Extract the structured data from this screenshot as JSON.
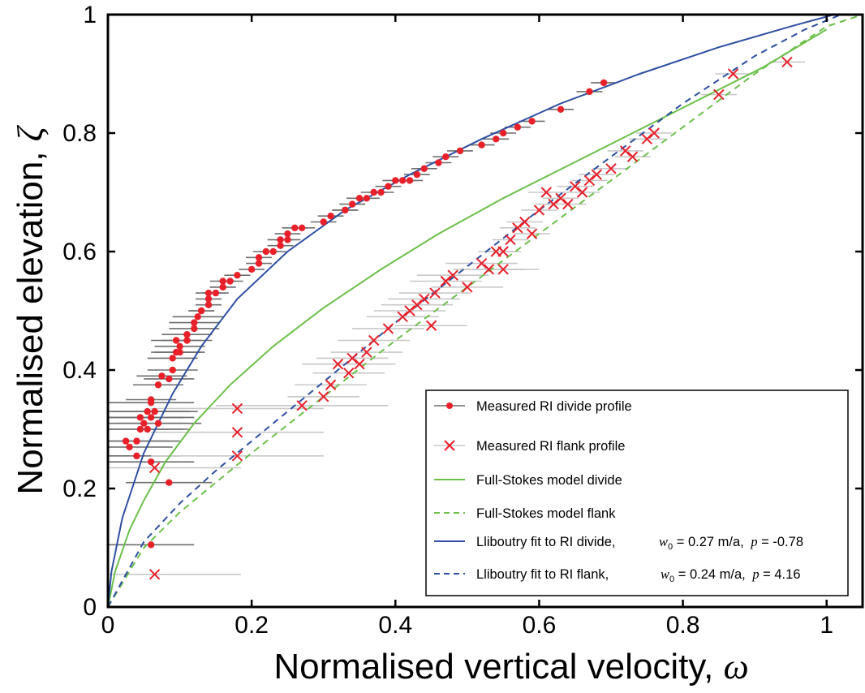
{
  "chart_data": {
    "type": "scatter",
    "xlabel": "Normalised vertical velocity,",
    "xlabel_symbol": "ω",
    "ylabel": "Normalised elevation,",
    "ylabel_symbol": "ζ",
    "xlim": [
      0,
      1.05
    ],
    "ylim": [
      0,
      1
    ],
    "x_ticks": [
      0,
      0.2,
      0.4,
      0.6,
      0.8,
      1
    ],
    "y_ticks": [
      0,
      0.2,
      0.4,
      0.6,
      0.8,
      1
    ],
    "x_tick_labels": [
      "0",
      "0.2",
      "0.4",
      "0.6",
      "0.8",
      "1"
    ],
    "y_tick_labels": [
      "0",
      "0.2",
      "0.4",
      "0.6",
      "0.8",
      "1"
    ],
    "grid": false,
    "legend_position": "bottom-right",
    "colors": {
      "measured": "#e8202a",
      "divide_err": "#6e6e6e",
      "flank_err": "#c8c8c8",
      "fullstokes": "#6cc04a",
      "lliboutry": "#2e4fa2"
    },
    "series": [
      {
        "name": "Measured RI divide profile",
        "marker": "dot",
        "x": [
          0.025,
          0.03,
          0.04,
          0.04,
          0.045,
          0.055,
          0.045,
          0.05,
          0.055,
          0.06,
          0.06,
          0.065,
          0.06,
          0.07,
          0.07,
          0.075,
          0.085,
          0.09,
          0.09,
          0.095,
          0.1,
          0.1,
          0.095,
          0.11,
          0.11,
          0.12,
          0.12,
          0.125,
          0.13,
          0.13,
          0.14,
          0.14,
          0.14,
          0.15,
          0.16,
          0.16,
          0.16,
          0.17,
          0.18,
          0.2,
          0.21,
          0.21,
          0.22,
          0.23,
          0.24,
          0.24,
          0.25,
          0.25,
          0.26,
          0.27,
          0.3,
          0.31,
          0.33,
          0.33,
          0.34,
          0.35,
          0.36,
          0.37,
          0.38,
          0.39,
          0.4,
          0.41,
          0.42,
          0.43,
          0.44,
          0.46,
          0.47,
          0.49,
          0.52,
          0.54,
          0.55,
          0.57,
          0.59,
          0.63,
          0.67,
          0.69,
          0.06,
          0.06,
          0.085
        ],
        "y": [
          0.28,
          0.27,
          0.255,
          0.28,
          0.3,
          0.3,
          0.32,
          0.31,
          0.33,
          0.32,
          0.345,
          0.33,
          0.35,
          0.31,
          0.375,
          0.39,
          0.385,
          0.4,
          0.42,
          0.43,
          0.43,
          0.44,
          0.45,
          0.45,
          0.46,
          0.47,
          0.48,
          0.49,
          0.5,
          0.5,
          0.51,
          0.52,
          0.53,
          0.53,
          0.54,
          0.54,
          0.55,
          0.55,
          0.56,
          0.57,
          0.58,
          0.59,
          0.6,
          0.6,
          0.61,
          0.62,
          0.62,
          0.63,
          0.64,
          0.64,
          0.65,
          0.66,
          0.67,
          0.67,
          0.68,
          0.69,
          0.69,
          0.7,
          0.7,
          0.71,
          0.72,
          0.72,
          0.72,
          0.73,
          0.74,
          0.75,
          0.76,
          0.77,
          0.78,
          0.79,
          0.8,
          0.81,
          0.82,
          0.84,
          0.87,
          0.885,
          0.105,
          0.245,
          0.21
        ]
      },
      {
        "name": "Measured RI flank profile",
        "marker": "x",
        "x": [
          0.065,
          0.18,
          0.18,
          0.18,
          0.065,
          0.27,
          0.3,
          0.31,
          0.32,
          0.335,
          0.34,
          0.35,
          0.36,
          0.37,
          0.39,
          0.41,
          0.42,
          0.43,
          0.44,
          0.45,
          0.455,
          0.47,
          0.48,
          0.5,
          0.52,
          0.53,
          0.54,
          0.55,
          0.55,
          0.56,
          0.57,
          0.58,
          0.59,
          0.6,
          0.61,
          0.62,
          0.63,
          0.64,
          0.65,
          0.66,
          0.67,
          0.68,
          0.7,
          0.72,
          0.73,
          0.75,
          0.76,
          0.85,
          0.87,
          0.945
        ],
        "y": [
          0.055,
          0.255,
          0.295,
          0.335,
          0.235,
          0.34,
          0.355,
          0.375,
          0.41,
          0.395,
          0.42,
          0.41,
          0.43,
          0.45,
          0.47,
          0.49,
          0.5,
          0.51,
          0.52,
          0.475,
          0.53,
          0.55,
          0.56,
          0.54,
          0.58,
          0.57,
          0.6,
          0.57,
          0.6,
          0.62,
          0.64,
          0.65,
          0.63,
          0.67,
          0.7,
          0.68,
          0.69,
          0.68,
          0.71,
          0.7,
          0.72,
          0.73,
          0.74,
          0.77,
          0.76,
          0.79,
          0.8,
          0.865,
          0.9,
          0.92
        ]
      },
      {
        "name": "Full-Stokes model divide",
        "type": "line",
        "style": "solid",
        "x": [
          0,
          0.01,
          0.03,
          0.05,
          0.08,
          0.12,
          0.17,
          0.23,
          0.3,
          0.38,
          0.46,
          0.55,
          0.64,
          0.73,
          0.82,
          0.91,
          1.0
        ],
        "y": [
          0,
          0.06,
          0.13,
          0.18,
          0.245,
          0.31,
          0.375,
          0.44,
          0.505,
          0.57,
          0.63,
          0.69,
          0.745,
          0.8,
          0.855,
          0.91,
          0.975
        ]
      },
      {
        "name": "Full-Stokes model flank",
        "type": "line",
        "style": "dashed",
        "x": [
          0,
          0.05,
          0.1,
          0.15,
          0.2,
          0.3,
          0.4,
          0.5,
          0.6,
          0.7,
          0.8,
          0.9,
          1.0,
          1.05
        ],
        "y": [
          0,
          0.1,
          0.16,
          0.21,
          0.26,
          0.355,
          0.45,
          0.54,
          0.63,
          0.72,
          0.81,
          0.9,
          0.98,
          1.0
        ]
      },
      {
        "name": "Lliboutry fit to RI divide,",
        "type": "line",
        "style": "solid",
        "x": [
          0,
          0.005,
          0.02,
          0.05,
          0.09,
          0.13,
          0.18,
          0.25,
          0.33,
          0.42,
          0.52,
          0.63,
          0.74,
          0.85,
          0.95,
          1.01
        ],
        "y": [
          0,
          0.06,
          0.15,
          0.26,
          0.36,
          0.44,
          0.52,
          0.6,
          0.67,
          0.73,
          0.79,
          0.85,
          0.9,
          0.945,
          0.98,
          1.0
        ]
      },
      {
        "name": "Lliboutry fit to RI flank,",
        "type": "line",
        "style": "dashed",
        "x": [
          0,
          0.05,
          0.1,
          0.15,
          0.2,
          0.3,
          0.4,
          0.5,
          0.6,
          0.7,
          0.8,
          0.9,
          0.97,
          1.02
        ],
        "y": [
          0,
          0.11,
          0.175,
          0.23,
          0.28,
          0.38,
          0.48,
          0.575,
          0.67,
          0.76,
          0.85,
          0.93,
          0.975,
          1.0
        ]
      }
    ],
    "legend": [
      {
        "label": "Measured RI divide profile",
        "w0_text": "",
        "p_text": ""
      },
      {
        "label": "Measured RI flank profile",
        "w0_text": "",
        "p_text": ""
      },
      {
        "label": "Full-Stokes model divide",
        "w0_text": "",
        "p_text": ""
      },
      {
        "label": "Full-Stokes model flank",
        "w0_text": "",
        "p_text": ""
      },
      {
        "label": "Lliboutry fit to RI divide,",
        "w0_sym": "w",
        "w0_sub": "0",
        "w0_text": " = 0.27 m/a,",
        "p_sym": "p",
        "p_text": " = -0.78"
      },
      {
        "label": "Lliboutry fit to RI flank,",
        "w0_sym": "w",
        "w0_sub": "0",
        "w0_text": " = 0.24 m/a,",
        "p_sym": "p",
        "p_text": " =  4.16"
      }
    ]
  }
}
